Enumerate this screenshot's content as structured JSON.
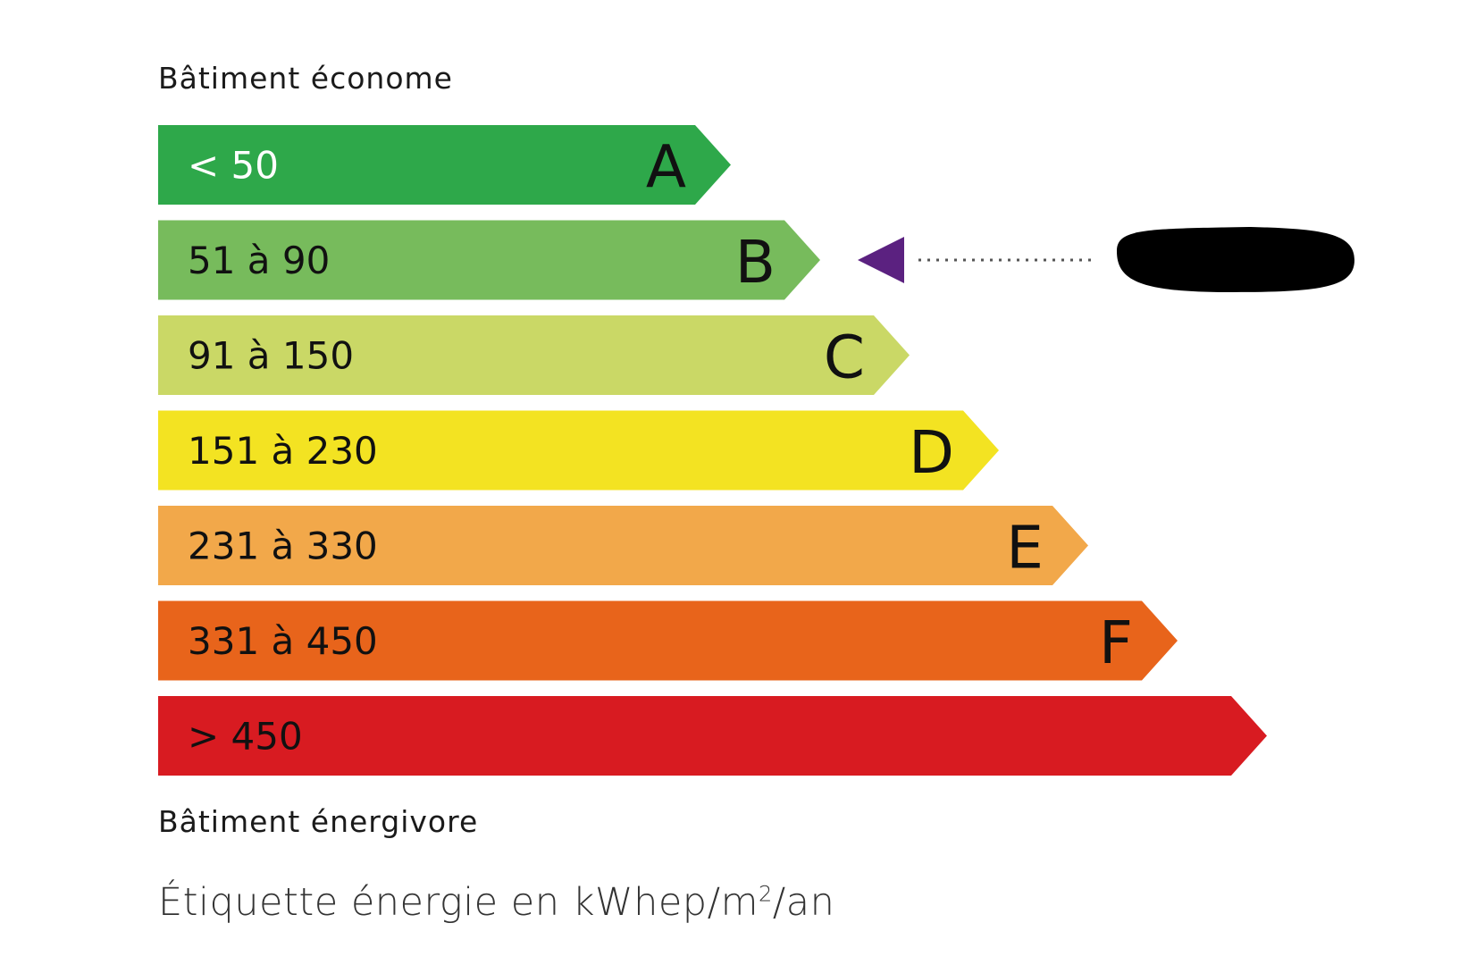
{
  "top_label": "Bâtiment économe",
  "bottom_label": "Bâtiment énergivore",
  "unit_label_prefix": "Étiquette énergie en kWhep/m",
  "unit_label_sup": "2",
  "unit_label_suffix": "/an",
  "indicated_class": "B",
  "indicator_color": "#5b2180",
  "classes": [
    {
      "letter": "A",
      "range": "< 50",
      "color": "#2ea84a",
      "text_color": "#ffffff"
    },
    {
      "letter": "B",
      "range": "51 à 90",
      "color": "#77bb5c",
      "text_color": "#111111"
    },
    {
      "letter": "C",
      "range": "91 à 150",
      "color": "#cad866",
      "text_color": "#111111"
    },
    {
      "letter": "D",
      "range": "151 à 230",
      "color": "#f3e322",
      "text_color": "#111111"
    },
    {
      "letter": "E",
      "range": "231 à 330",
      "color": "#f2a84a",
      "text_color": "#111111"
    },
    {
      "letter": "F",
      "range": "331 à 450",
      "color": "#e8641b",
      "text_color": "#111111"
    },
    {
      "letter": "",
      "range": "> 450",
      "color": "#d81b21",
      "text_color": "#111111"
    }
  ]
}
